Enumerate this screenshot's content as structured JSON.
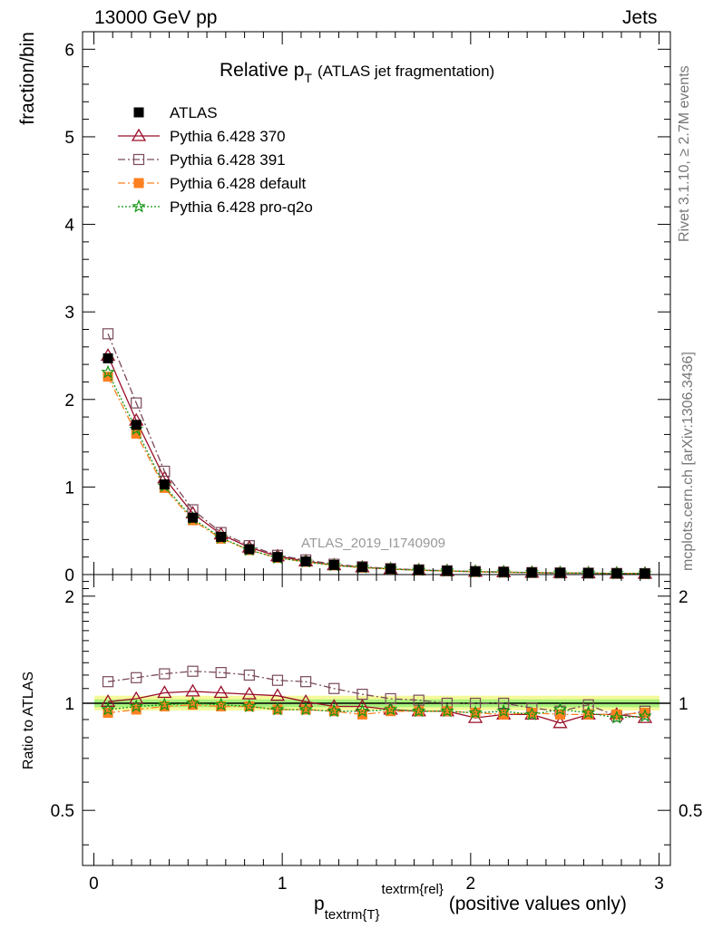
{
  "header": {
    "left": "13000 GeV pp",
    "right": "Jets"
  },
  "side_labels": {
    "rivet": "Rivet 3.1.10, ≥ 2.7M events",
    "mcplots": "mcplots.cern.ch [arXiv:1306.3436]"
  },
  "main_panel": {
    "title_main": "Relative p",
    "title_sub": "T",
    "title_note": "(ATLAS jet fragmentation)",
    "ylabel": "fraction/bin",
    "watermark": "ATLAS_2019_I1740909",
    "yticks": [
      "0",
      "1",
      "2",
      "3",
      "4",
      "5",
      "6"
    ]
  },
  "ratio_panel": {
    "ylabel": "Ratio to ATLAS",
    "yticks": [
      "0.5",
      "1",
      "2"
    ]
  },
  "x_axis": {
    "ticks": [
      "0",
      "1",
      "2",
      "3"
    ],
    "label_p": "p",
    "label_sub": "textrm{T",
    "label_sup": "textrm{rel",
    "label_brace_sub": "}",
    "label_brace_sup": "}",
    "label_tail": " (positive values only)"
  },
  "legend": [
    {
      "label": "ATLAS",
      "color": "#000000",
      "marker": "filled-square",
      "line": "none"
    },
    {
      "label": "Pythia 6.428 370",
      "color": "#990f2a",
      "marker": "open-triangle",
      "line": "solid"
    },
    {
      "label": "Pythia 6.428 391",
      "color": "#7a4a5a",
      "marker": "open-square",
      "line": "dashdot"
    },
    {
      "label": "Pythia 6.428 default",
      "color": "#ff8020",
      "marker": "filled-square",
      "line": "dashdot"
    },
    {
      "label": "Pythia 6.428 pro-q2o",
      "color": "#129612",
      "marker": "open-star",
      "line": "dotted"
    }
  ],
  "chart_data": {
    "type": "line",
    "title": "Relative pT (ATLAS jet fragmentation)",
    "xlabel": "p_T^rel (positive values only)",
    "ylabel": "fraction/bin",
    "xlim": [
      -0.06,
      3.06
    ],
    "ylim": [
      0,
      6.2
    ],
    "ratio_ylim": [
      0.35,
      2.3
    ],
    "grid": false,
    "legend_position": "top-left",
    "x": [
      0.075,
      0.225,
      0.375,
      0.525,
      0.675,
      0.825,
      0.975,
      1.125,
      1.275,
      1.425,
      1.575,
      1.725,
      1.875,
      2.025,
      2.175,
      2.325,
      2.475,
      2.625,
      2.775,
      2.925
    ],
    "reference": {
      "name": "ATLAS",
      "values": [
        2.47,
        1.71,
        1.03,
        0.65,
        0.43,
        0.29,
        0.2,
        0.15,
        0.11,
        0.085,
        0.066,
        0.053,
        0.043,
        0.035,
        0.029,
        0.024,
        0.02,
        0.017,
        0.014,
        0.012
      ]
    },
    "series": [
      {
        "name": "Pythia 6.428 370",
        "values": [
          2.5,
          1.76,
          1.1,
          0.7,
          0.46,
          0.31,
          0.21,
          0.152,
          0.108,
          0.083,
          0.063,
          0.05,
          0.041,
          0.032,
          0.027,
          0.022,
          0.018,
          0.016,
          0.013,
          0.011
        ],
        "ratio": [
          1.01,
          1.03,
          1.07,
          1.08,
          1.07,
          1.06,
          1.05,
          1.01,
          0.98,
          0.98,
          0.96,
          0.95,
          0.95,
          0.91,
          0.93,
          0.93,
          0.88,
          0.93,
          0.93,
          0.91
        ]
      },
      {
        "name": "Pythia 6.428 391",
        "values": [
          2.75,
          1.96,
          1.18,
          0.74,
          0.48,
          0.33,
          0.22,
          0.167,
          0.118,
          0.089,
          0.068,
          0.054,
          0.043,
          0.035,
          0.029,
          0.023,
          0.019,
          0.017,
          0.013,
          0.011
        ],
        "ratio": [
          1.15,
          1.18,
          1.21,
          1.23,
          1.22,
          1.2,
          1.16,
          1.15,
          1.1,
          1.06,
          1.03,
          1.02,
          1.0,
          1.0,
          1.0,
          0.97,
          0.95,
          0.99,
          0.92,
          0.95
        ]
      },
      {
        "name": "Pythia 6.428 default",
        "values": [
          2.26,
          1.61,
          0.99,
          0.62,
          0.41,
          0.28,
          0.19,
          0.145,
          0.105,
          0.08,
          0.063,
          0.05,
          0.041,
          0.033,
          0.027,
          0.023,
          0.019,
          0.016,
          0.013,
          0.011
        ],
        "ratio": [
          0.94,
          0.96,
          0.98,
          0.99,
          0.98,
          0.98,
          0.96,
          0.96,
          0.95,
          0.93,
          0.95,
          0.95,
          0.95,
          0.94,
          0.93,
          0.94,
          0.93,
          0.93,
          0.93,
          0.94
        ]
      },
      {
        "name": "Pythia 6.428 pro-q2o",
        "values": [
          2.31,
          1.66,
          1.01,
          0.64,
          0.42,
          0.28,
          0.19,
          0.145,
          0.104,
          0.081,
          0.063,
          0.05,
          0.041,
          0.033,
          0.028,
          0.023,
          0.019,
          0.016,
          0.013,
          0.011
        ],
        "ratio": [
          0.96,
          0.98,
          0.99,
          1.0,
          0.99,
          0.98,
          0.96,
          0.96,
          0.95,
          0.95,
          0.96,
          0.95,
          0.95,
          0.94,
          0.95,
          0.93,
          0.96,
          0.94,
          0.91,
          0.92
        ]
      }
    ]
  }
}
